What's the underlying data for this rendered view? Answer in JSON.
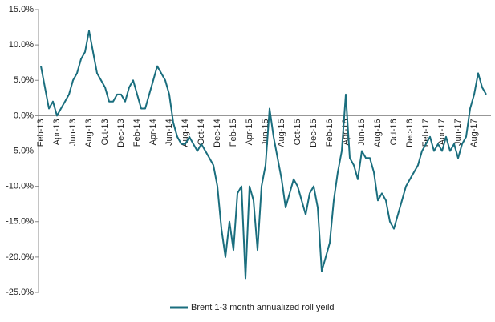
{
  "chart_data": {
    "type": "line",
    "categories": [
      "Feb-13",
      null,
      null,
      null,
      "Apr-13",
      null,
      null,
      null,
      "Jun-13",
      null,
      null,
      null,
      "Aug-13",
      null,
      null,
      null,
      "Oct-13",
      null,
      null,
      null,
      "Dec-13",
      null,
      null,
      null,
      "Feb-14",
      null,
      null,
      null,
      "Apr-14",
      null,
      null,
      null,
      "Jun-14",
      null,
      null,
      null,
      "Aug-14",
      null,
      null,
      null,
      "Oct-14",
      null,
      null,
      null,
      "Dec-14",
      null,
      null,
      null,
      "Feb-15",
      null,
      null,
      null,
      "Apr-15",
      null,
      null,
      null,
      "Jun-15",
      null,
      null,
      null,
      "Aug-15",
      null,
      null,
      null,
      "Oct-15",
      null,
      null,
      null,
      "Dec-15",
      null,
      null,
      null,
      "Feb-16",
      null,
      null,
      null,
      "Apr-16",
      null,
      null,
      null,
      "Jun-16",
      null,
      null,
      null,
      "Aug-16",
      null,
      null,
      null,
      "Oct-16",
      null,
      null,
      null,
      "Dec-16",
      null,
      null,
      null,
      "Feb-17",
      null,
      null,
      null,
      "Apr-17",
      null,
      null,
      null,
      "Jun-17",
      null,
      null,
      null,
      "Aug-17",
      null,
      null,
      null
    ],
    "series": [
      {
        "name": "Brent 1-3 month annualized roll yeild",
        "color": "#1a6e7e",
        "values": [
          7,
          4,
          1,
          2,
          0,
          1,
          2,
          3,
          5,
          6,
          8,
          9,
          12,
          9,
          6,
          5,
          4,
          2,
          2,
          3,
          3,
          2,
          4,
          5,
          3,
          1,
          1,
          3,
          5,
          7,
          6,
          5,
          3,
          -1,
          -3,
          -4,
          -4,
          -3,
          -4,
          -5,
          -4,
          -5,
          -6,
          -7,
          -10,
          -16,
          -20,
          -15,
          -19,
          -11,
          -10,
          -23,
          -10,
          -12,
          -19,
          -10,
          -7,
          1,
          -3,
          -6,
          -9,
          -13,
          -11,
          -9,
          -10,
          -12,
          -14,
          -11,
          -10,
          -13,
          -22,
          -20,
          -18,
          -12,
          -8,
          -5,
          3,
          -6,
          -7,
          -9,
          -5,
          -6,
          -6,
          -8,
          -12,
          -11,
          -12,
          -15,
          -16,
          -14,
          -12,
          -10,
          -9,
          -8,
          -7,
          -5,
          -4,
          -3,
          -5,
          -4,
          -5,
          -3,
          -5,
          -4,
          -6,
          -4,
          -3,
          1,
          3,
          6,
          4,
          3
        ]
      }
    ],
    "ylim": [
      -25,
      15
    ],
    "yticks": [
      {
        "value": -25,
        "label": "-25.0%"
      },
      {
        "value": -20,
        "label": "-20.0%"
      },
      {
        "value": -15,
        "label": "-15.0%"
      },
      {
        "value": -10,
        "label": "-10.0%"
      },
      {
        "value": -5,
        "label": "-5.0%"
      },
      {
        "value": 0,
        "label": "0.0%"
      },
      {
        "value": 5,
        "label": "5.0%"
      },
      {
        "value": 10,
        "label": "10.0%"
      },
      {
        "value": 15,
        "label": "15.0%"
      }
    ],
    "grid": false,
    "legend": "bottom"
  }
}
